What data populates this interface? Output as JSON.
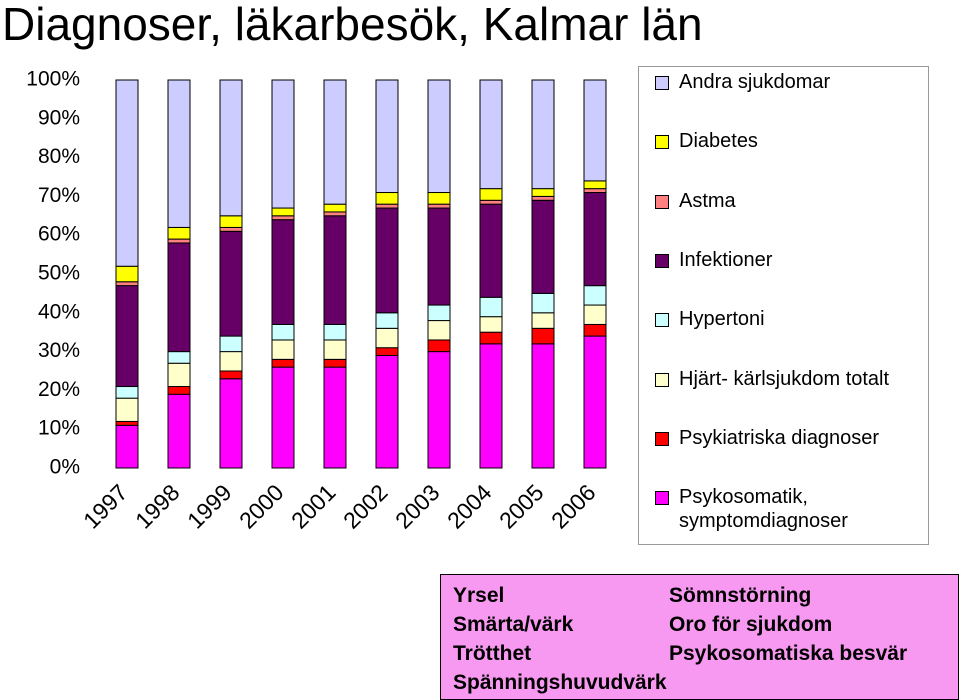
{
  "chart_data": {
    "type": "stacked_bar_100",
    "title": "Diagnoser, läkarbesök, Kalmar län",
    "categories": [
      "1997",
      "1998",
      "1999",
      "2000",
      "2001",
      "2002",
      "2003",
      "2004",
      "2005",
      "2006"
    ],
    "ylim": [
      0,
      100
    ],
    "yticks": [
      {
        "value": 0,
        "label": "0%"
      },
      {
        "value": 10,
        "label": "10%"
      },
      {
        "value": 20,
        "label": "20%"
      },
      {
        "value": 30,
        "label": "30%"
      },
      {
        "value": 40,
        "label": "40%"
      },
      {
        "value": 50,
        "label": "50%"
      },
      {
        "value": 60,
        "label": "60%"
      },
      {
        "value": 70,
        "label": "70%"
      },
      {
        "value": 80,
        "label": "80%"
      },
      {
        "value": 90,
        "label": "90%"
      },
      {
        "value": 100,
        "label": "100%"
      }
    ],
    "series": [
      {
        "name": "Psykosomatik, symptomdiagnoser",
        "color": "#ff00ff",
        "values": [
          11,
          19,
          23,
          26,
          26,
          29,
          30,
          32,
          32,
          34
        ]
      },
      {
        "name": "Psykiatriska diagnoser",
        "color": "#ff0000",
        "values": [
          1,
          2,
          2,
          2,
          2,
          2,
          3,
          3,
          4,
          3
        ]
      },
      {
        "name": "Hjärt- kärlsjukdom totalt",
        "color": "#ffffcc",
        "values": [
          6,
          6,
          5,
          5,
          5,
          5,
          5,
          4,
          4,
          5
        ]
      },
      {
        "name": "Hypertoni",
        "color": "#ccffff",
        "values": [
          3,
          3,
          4,
          4,
          4,
          4,
          4,
          5,
          5,
          5
        ]
      },
      {
        "name": "Infektioner",
        "color": "#660066",
        "values": [
          26,
          28,
          27,
          27,
          28,
          27,
          25,
          24,
          24,
          24
        ]
      },
      {
        "name": "Astma",
        "color": "#ff8080",
        "values": [
          1,
          1,
          1,
          1,
          1,
          1,
          1,
          1,
          1,
          1
        ]
      },
      {
        "name": "Diabetes",
        "color": "#ffff00",
        "values": [
          4,
          3,
          3,
          2,
          2,
          3,
          3,
          3,
          2,
          2
        ]
      },
      {
        "name": "Andra sjukdomar",
        "color": "#ccccff",
        "values": [
          48,
          38,
          35,
          33,
          32,
          29,
          29,
          28,
          28,
          26
        ]
      }
    ]
  },
  "symptom_box": {
    "left": [
      "Yrsel",
      "Smärta/värk",
      "Trötthet",
      "Spänningshuvudvärk"
    ],
    "right": [
      "Sömnstörning",
      "Oro för sjukdom",
      "Psykosomatiska besvär"
    ]
  }
}
